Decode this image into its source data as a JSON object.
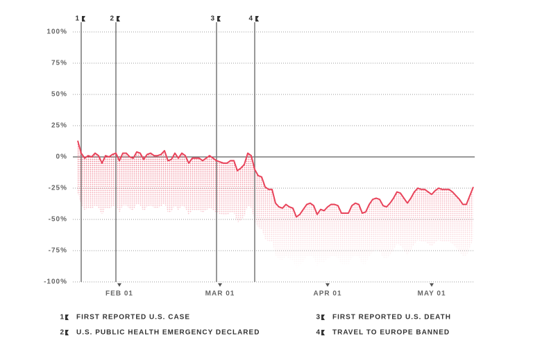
{
  "chart_data": {
    "type": "line",
    "categories": [
      null,
      null,
      null,
      null,
      null,
      null,
      null,
      null,
      null,
      null,
      null,
      null,
      "FEB 01",
      null,
      null,
      null,
      null,
      null,
      null,
      null,
      null,
      null,
      null,
      null,
      null,
      null,
      null,
      null,
      null,
      null,
      null,
      null,
      null,
      null,
      null,
      null,
      null,
      null,
      null,
      null,
      null,
      "MAR 01",
      null,
      null,
      null,
      null,
      null,
      null,
      null,
      null,
      null,
      null,
      null,
      null,
      null,
      null,
      null,
      null,
      null,
      null,
      null,
      null,
      null,
      null,
      null,
      null,
      null,
      null,
      null,
      null,
      null,
      null,
      "APR 01",
      null,
      null,
      null,
      null,
      null,
      null,
      null,
      null,
      null,
      null,
      null,
      null,
      null,
      null,
      null,
      null,
      null,
      null,
      null,
      null,
      null,
      null,
      null,
      null,
      null,
      null,
      null,
      null,
      null,
      "MAY 01",
      null,
      null,
      null,
      null,
      null,
      null,
      null,
      null,
      null,
      null,
      null,
      null
    ],
    "values": [
      13,
      3,
      -1,
      1,
      0,
      3,
      1,
      -5,
      1,
      0,
      2,
      3,
      -3,
      3,
      3,
      0,
      -1,
      4,
      3,
      -2,
      2,
      3,
      1,
      1,
      2,
      5,
      -3,
      -2,
      3,
      -1,
      3,
      1,
      -5,
      -1,
      -1,
      -1,
      -3,
      -1,
      1,
      -1,
      -3,
      -4,
      -5,
      -5,
      -3,
      -3,
      -11,
      -9,
      -6,
      3,
      1,
      -10,
      -15,
      -16,
      -24,
      -26,
      -26,
      -37,
      -40,
      -41,
      -38,
      -40,
      -41,
      -48,
      -46,
      -42,
      -38,
      -37,
      -39,
      -46,
      -42,
      -43,
      -40,
      -38,
      -38,
      -39,
      -45,
      -45,
      -45,
      -39,
      -37,
      -38,
      -45,
      -44,
      -38,
      -34,
      -33,
      -34,
      -39,
      -40,
      -37,
      -33,
      -28,
      -29,
      -33,
      -37,
      -33,
      -28,
      -25,
      -26,
      -26,
      -28,
      -30,
      -27,
      -25,
      -26,
      -26,
      -26,
      -28,
      -31,
      -34,
      -38,
      -38,
      -31,
      -24
    ],
    "color": "#e8435a",
    "ylim": [
      -100,
      100
    ],
    "yticks": [
      {
        "value": 100,
        "label": "100%"
      },
      {
        "value": 75,
        "label": "75%"
      },
      {
        "value": 50,
        "label": "50%"
      },
      {
        "value": 25,
        "label": "25%"
      },
      {
        "value": 0,
        "label": "0%"
      },
      {
        "value": -25,
        "label": "-25%"
      },
      {
        "value": -50,
        "label": "-50%"
      },
      {
        "value": -75,
        "label": "-75%"
      },
      {
        "value": -100,
        "label": "-100%"
      }
    ],
    "grid": true,
    "events": [
      {
        "label": "1",
        "at": 1,
        "text": "FIRST REPORTED U.S. CASE"
      },
      {
        "label": "2",
        "at": 11,
        "text": "U.S. PUBLIC HEALTH EMERGENCY DECLARED"
      },
      {
        "label": "3",
        "at": 40,
        "text": "FIRST REPORTED U.S. DEATH"
      },
      {
        "label": "4",
        "at": 51,
        "text": "TRAVEL TO EUROPE BANNED"
      }
    ]
  }
}
